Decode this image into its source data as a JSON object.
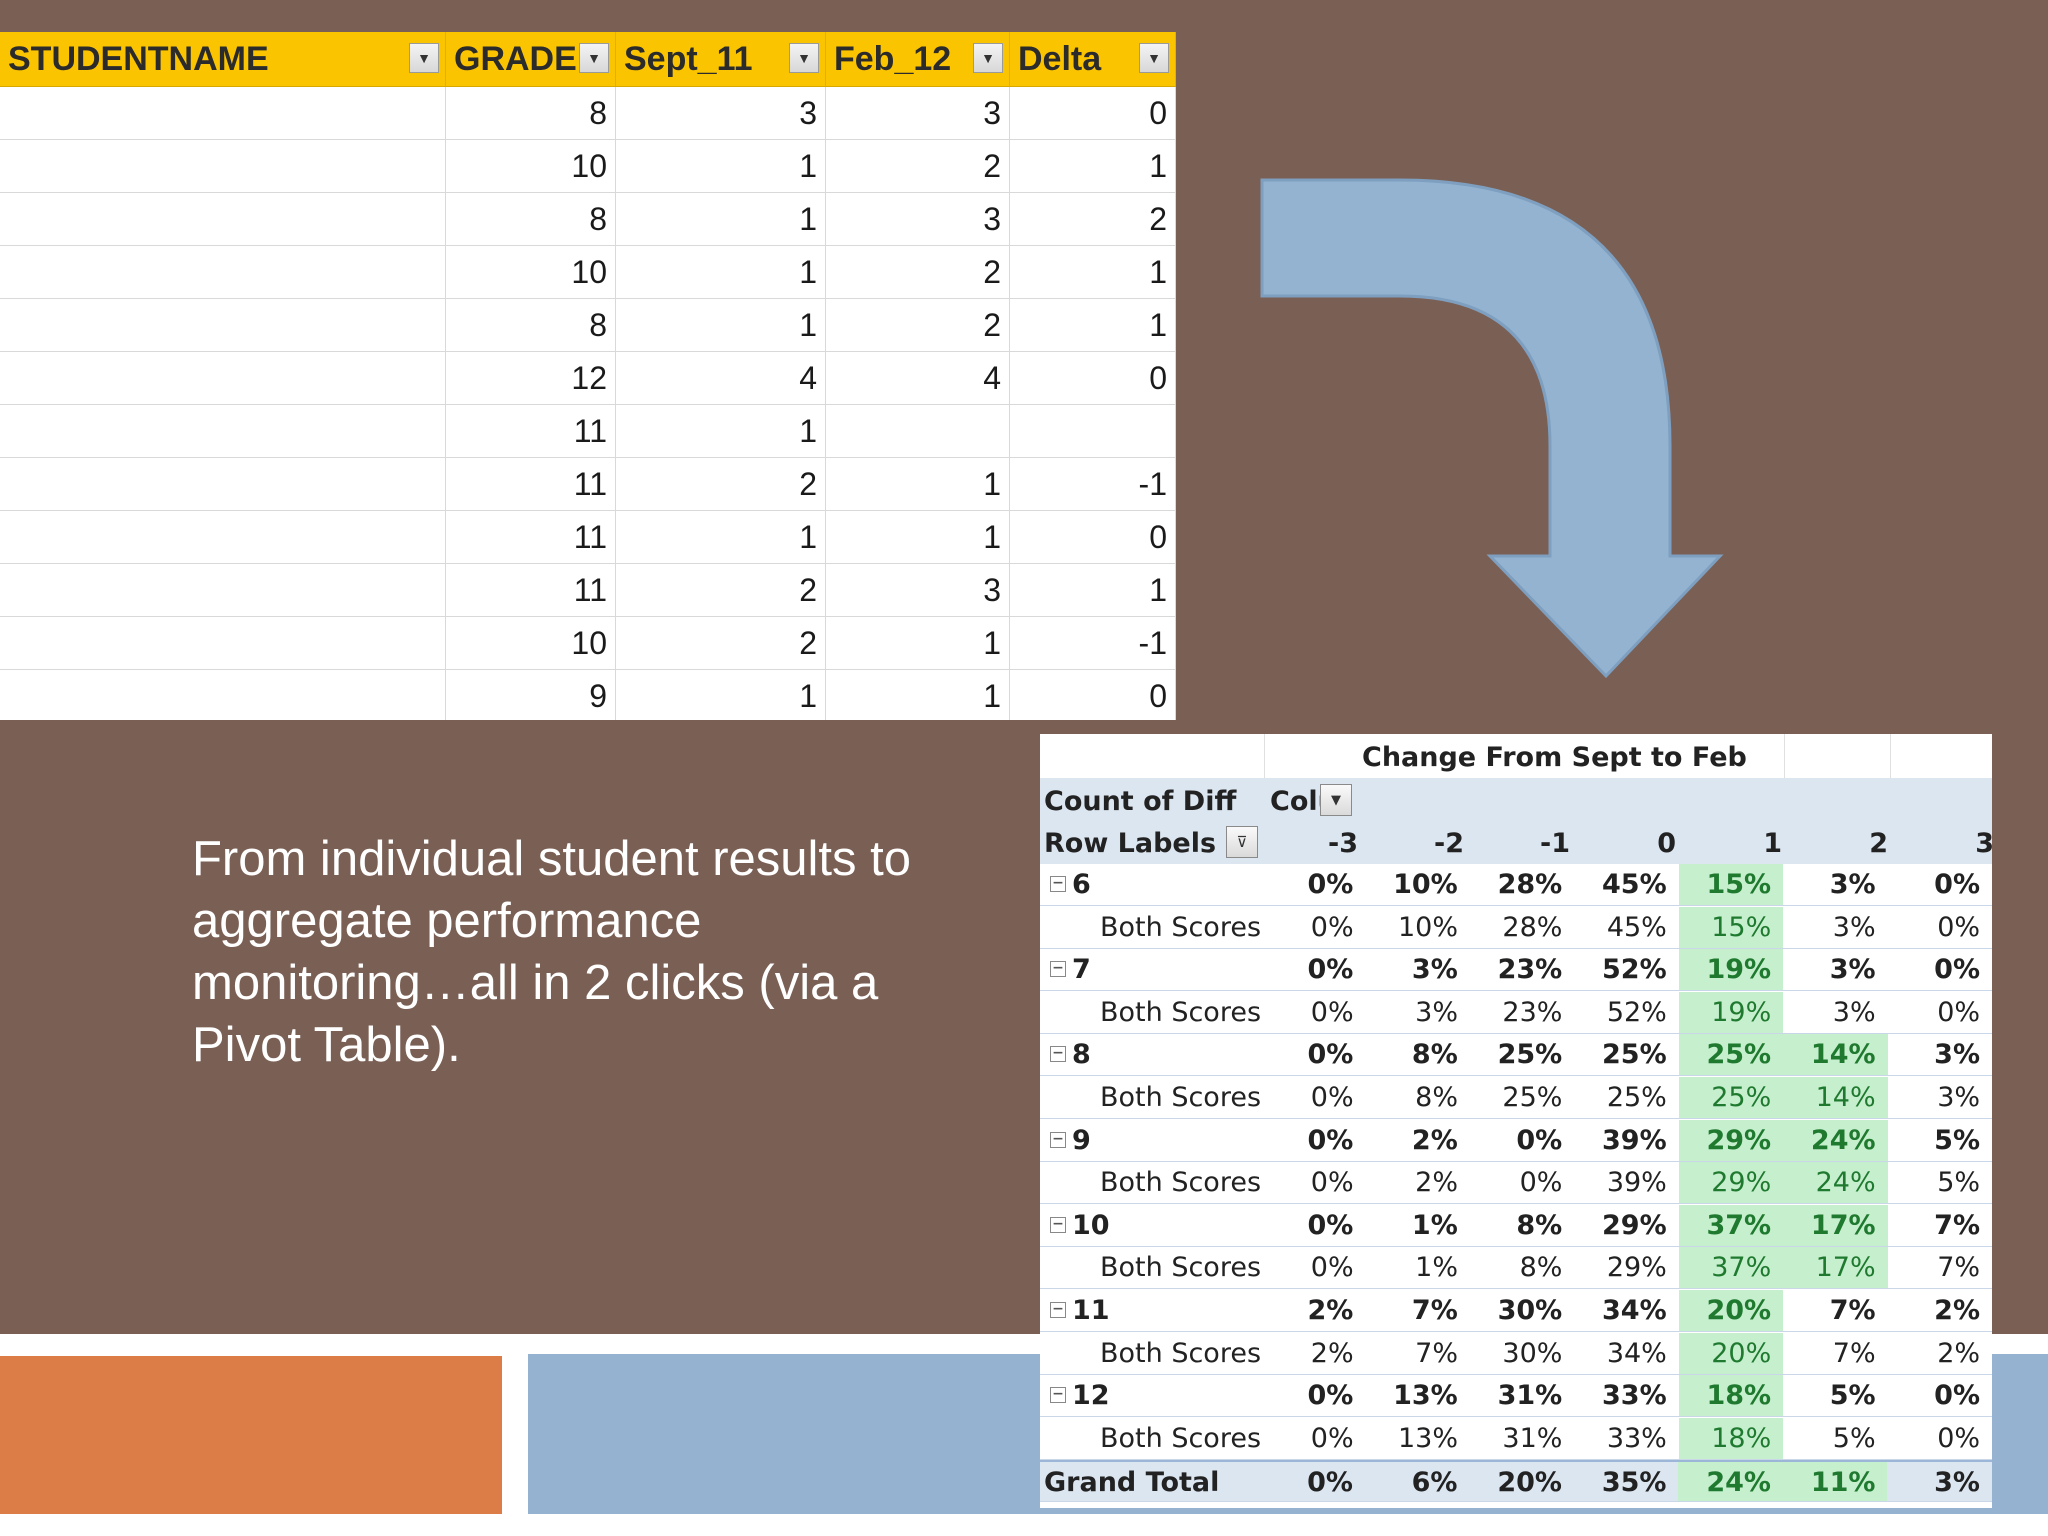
{
  "excel": {
    "headers": [
      "STUDENTNAME",
      "GRADE",
      "Sept_11",
      "Feb_12",
      "Delta"
    ],
    "rows": [
      [
        "",
        "8",
        "3",
        "3",
        "0"
      ],
      [
        "",
        "10",
        "1",
        "2",
        "1"
      ],
      [
        "",
        "8",
        "1",
        "3",
        "2"
      ],
      [
        "",
        "10",
        "1",
        "2",
        "1"
      ],
      [
        "",
        "8",
        "1",
        "2",
        "1"
      ],
      [
        "",
        "12",
        "4",
        "4",
        "0"
      ],
      [
        "",
        "11",
        "1",
        "",
        ""
      ],
      [
        "",
        "11",
        "2",
        "1",
        "-1"
      ],
      [
        "",
        "11",
        "1",
        "1",
        "0"
      ],
      [
        "",
        "11",
        "2",
        "3",
        "1"
      ],
      [
        "",
        "10",
        "2",
        "1",
        "-1"
      ],
      [
        "",
        "9",
        "1",
        "1",
        "0"
      ]
    ]
  },
  "caption": "From individual student results to aggregate performance monitoring…all in 2 clicks (via a Pivot Table).",
  "pivot": {
    "title": "Change From Sept to Feb",
    "count_label": "Count of Diff",
    "col_label": "Colu",
    "row_labels": "Row Labels",
    "columns": [
      "-3",
      "-2",
      "-1",
      "0",
      "1",
      "2",
      "3"
    ],
    "rows": [
      {
        "label": "6",
        "type": "group",
        "values": [
          "0%",
          "10%",
          "28%",
          "45%",
          "15%",
          "3%",
          "0%"
        ]
      },
      {
        "label": "Both Scores",
        "type": "sub",
        "values": [
          "0%",
          "10%",
          "28%",
          "45%",
          "15%",
          "3%",
          "0%"
        ]
      },
      {
        "label": "7",
        "type": "group",
        "values": [
          "0%",
          "3%",
          "23%",
          "52%",
          "19%",
          "3%",
          "0%"
        ]
      },
      {
        "label": "Both Scores",
        "type": "sub",
        "values": [
          "0%",
          "3%",
          "23%",
          "52%",
          "19%",
          "3%",
          "0%"
        ]
      },
      {
        "label": "8",
        "type": "group",
        "values": [
          "0%",
          "8%",
          "25%",
          "25%",
          "25%",
          "14%",
          "3%"
        ]
      },
      {
        "label": "Both Scores",
        "type": "sub",
        "values": [
          "0%",
          "8%",
          "25%",
          "25%",
          "25%",
          "14%",
          "3%"
        ]
      },
      {
        "label": "9",
        "type": "group",
        "values": [
          "0%",
          "2%",
          "0%",
          "39%",
          "29%",
          "24%",
          "5%"
        ]
      },
      {
        "label": "Both Scores",
        "type": "sub",
        "values": [
          "0%",
          "2%",
          "0%",
          "39%",
          "29%",
          "24%",
          "5%"
        ]
      },
      {
        "label": "10",
        "type": "group",
        "values": [
          "0%",
          "1%",
          "8%",
          "29%",
          "37%",
          "17%",
          "7%"
        ]
      },
      {
        "label": "Both Scores",
        "type": "sub",
        "values": [
          "0%",
          "1%",
          "8%",
          "29%",
          "37%",
          "17%",
          "7%"
        ]
      },
      {
        "label": "11",
        "type": "group",
        "values": [
          "2%",
          "7%",
          "30%",
          "34%",
          "20%",
          "7%",
          "2%"
        ]
      },
      {
        "label": "Both Scores",
        "type": "sub",
        "values": [
          "2%",
          "7%",
          "30%",
          "34%",
          "20%",
          "7%",
          "2%"
        ]
      },
      {
        "label": "12",
        "type": "group",
        "values": [
          "0%",
          "13%",
          "31%",
          "33%",
          "18%",
          "5%",
          "0%"
        ]
      },
      {
        "label": "Both Scores",
        "type": "sub",
        "values": [
          "0%",
          "13%",
          "31%",
          "33%",
          "18%",
          "5%",
          "0%"
        ]
      }
    ],
    "grand_total": {
      "label": "Grand Total",
      "values": [
        "0%",
        "6%",
        "20%",
        "35%",
        "24%",
        "11%",
        "3%"
      ]
    }
  },
  "colors": {
    "background": "#7a5f54",
    "excel_header": "#fbc401",
    "arrow": "#93b3d1",
    "band_orange": "#dc7c47",
    "band_blue": "#95b3d0",
    "highlight_green": "#c6efce"
  }
}
